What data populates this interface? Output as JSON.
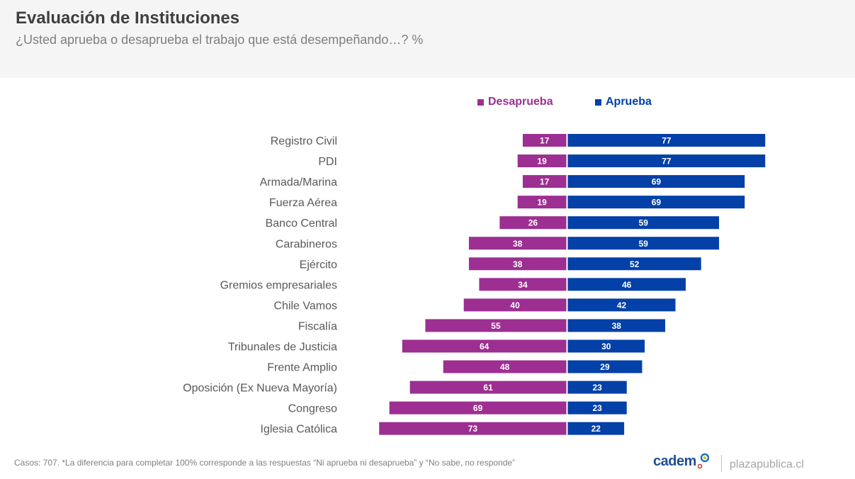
{
  "header": {
    "title": "Evaluación de Instituciones",
    "subtitle": "¿Usted aprueba o desaprueba el trabajo que está desempeñando…? %"
  },
  "legend": {
    "disapprove_label": "Desaprueba",
    "approve_label": "Aprueba"
  },
  "colors": {
    "disapprove": "#9c2f91",
    "approve": "#0340a7",
    "label_text": "#595959"
  },
  "footer": {
    "note": "Casos: 707. *La diferencia para completar 100% corresponde a las respuestas “Ni aprueba ni desaprueba” y “No sabe, no responde”",
    "logo": "cadem",
    "site": "plazapublica.cl"
  },
  "chart_data": {
    "type": "bar",
    "orientation": "horizontal-diverging",
    "title": "Evaluación de Instituciones",
    "subtitle": "¿Usted aprueba o desaprueba el trabajo que está desempeñando…? %",
    "legend_position": "top",
    "grid": false,
    "categories": [
      "Registro Civil",
      "PDI",
      "Armada/Marina",
      "Fuerza Aérea",
      "Banco Central",
      "Carabineros",
      "Ejército",
      "Gremios empresariales",
      "Chile Vamos",
      "Fiscalía",
      "Tribunales de Justicia",
      "Frente Amplio",
      "Oposición (Ex Nueva Mayoría)",
      "Congreso",
      "Iglesia Católica"
    ],
    "series": [
      {
        "name": "Desaprueba",
        "direction": "left",
        "values": [
          17,
          19,
          17,
          19,
          26,
          38,
          38,
          34,
          40,
          55,
          64,
          48,
          61,
          69,
          73
        ]
      },
      {
        "name": "Aprueba",
        "direction": "right",
        "values": [
          77,
          77,
          69,
          69,
          59,
          59,
          52,
          46,
          42,
          38,
          30,
          29,
          23,
          23,
          22
        ]
      }
    ],
    "unit": "%"
  }
}
